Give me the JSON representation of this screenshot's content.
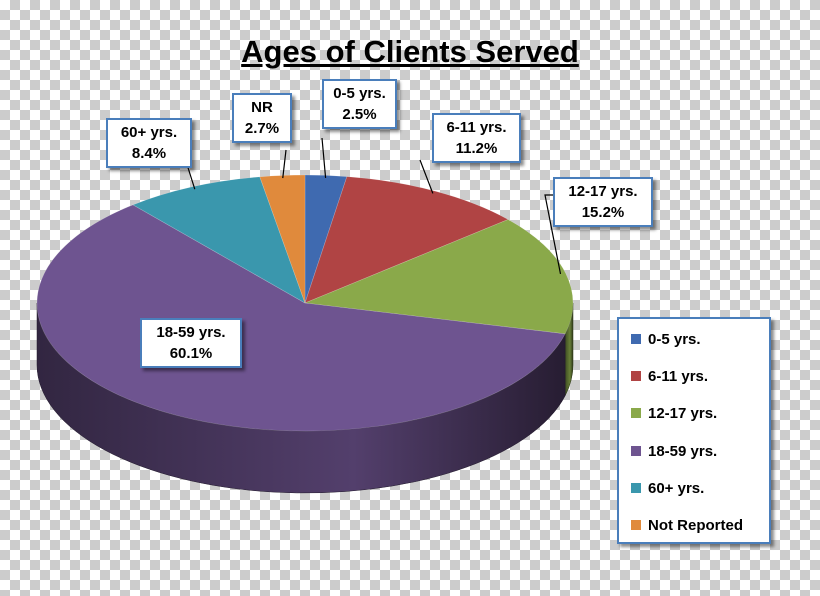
{
  "chart_data": {
    "type": "pie",
    "title": "Ages of Clients Served",
    "legend_position": "right",
    "slices": [
      {
        "name": "0-5 yrs.",
        "value": 2.5,
        "color": "#3f6ab0",
        "label_name": "0-5 yrs.",
        "label_value": "2.5%",
        "legend": "0-5 yrs."
      },
      {
        "name": "6-11 yrs.",
        "value": 11.2,
        "color": "#b04444",
        "label_name": "6-11 yrs.",
        "label_value": "11.2%",
        "legend": "6-11 yrs."
      },
      {
        "name": "12-17 yrs.",
        "value": 15.2,
        "color": "#8aa94a",
        "label_name": "12-17 yrs.",
        "label_value": "15.2%",
        "legend": "12-17 yrs."
      },
      {
        "name": "18-59 yrs.",
        "value": 60.1,
        "color": "#6e5490",
        "label_name": "18-59 yrs.",
        "label_value": "60.1%",
        "legend": "18-59 yrs."
      },
      {
        "name": "60+ yrs.",
        "value": 8.4,
        "color": "#3a97ad",
        "label_name": "60+ yrs.",
        "label_value": "8.4%",
        "legend": "60+ yrs."
      },
      {
        "name": "Not Reported",
        "value": 2.7,
        "color": "#e08a3c",
        "label_name": "NR",
        "label_value": "2.7%",
        "legend": "Not Reported"
      }
    ]
  }
}
